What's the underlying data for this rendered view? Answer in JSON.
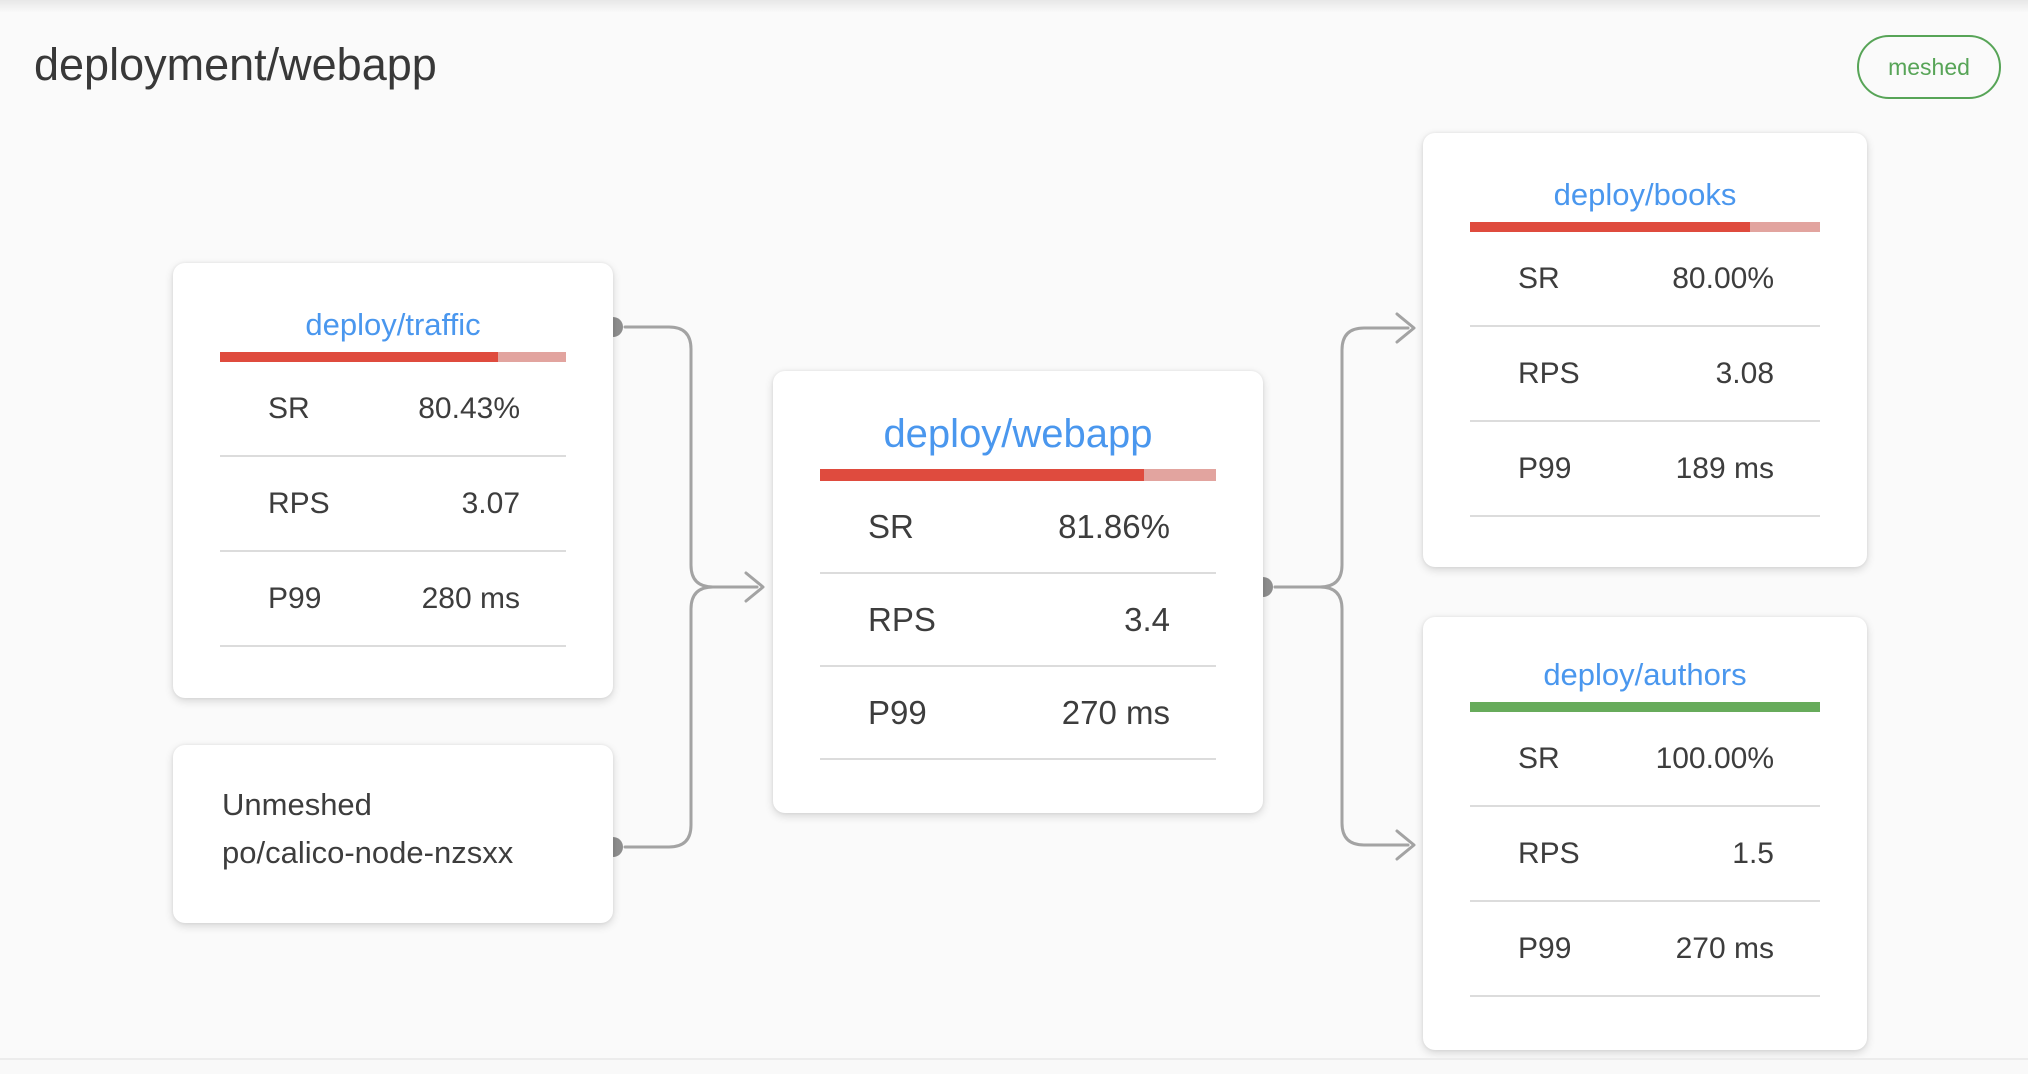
{
  "header": {
    "title": "deployment/webapp",
    "badge_label": "meshed"
  },
  "colors": {
    "accent_blue": "#4a97ee",
    "bar_red": "#df4b3e",
    "bar_red_track": "#e2a49f",
    "bar_green": "#67ab5b",
    "badge_green": "#57a457",
    "connector_gray": "#a3a3a3",
    "text_dark": "#3d3d3d"
  },
  "nodes": {
    "traffic": {
      "title": "deploy/traffic",
      "bar_pct": 80.43,
      "bar_color": "#df4b3e",
      "bar_track": "#e2a49f",
      "metrics": [
        {
          "label": "SR",
          "value": "80.43%"
        },
        {
          "label": "RPS",
          "value": "3.07"
        },
        {
          "label": "P99",
          "value": "280 ms"
        }
      ]
    },
    "unmeshed": {
      "title": "Unmeshed",
      "subtitle": "po/calico-node-nzsxx"
    },
    "webapp": {
      "title": "deploy/webapp",
      "bar_pct": 81.86,
      "bar_color": "#df4b3e",
      "bar_track": "#e2a49f",
      "metrics": [
        {
          "label": "SR",
          "value": "81.86%"
        },
        {
          "label": "RPS",
          "value": "3.4"
        },
        {
          "label": "P99",
          "value": "270 ms"
        }
      ]
    },
    "books": {
      "title": "deploy/books",
      "bar_pct": 80.0,
      "bar_color": "#df4b3e",
      "bar_track": "#e2a49f",
      "metrics": [
        {
          "label": "SR",
          "value": "80.00%"
        },
        {
          "label": "RPS",
          "value": "3.08"
        },
        {
          "label": "P99",
          "value": "189 ms"
        }
      ]
    },
    "authors": {
      "title": "deploy/authors",
      "bar_pct": 100,
      "bar_color": "#67ab5b",
      "bar_track": "#67ab5b",
      "metrics": [
        {
          "label": "SR",
          "value": "100.00%"
        },
        {
          "label": "RPS",
          "value": "1.5"
        },
        {
          "label": "P99",
          "value": "270 ms"
        }
      ]
    }
  }
}
